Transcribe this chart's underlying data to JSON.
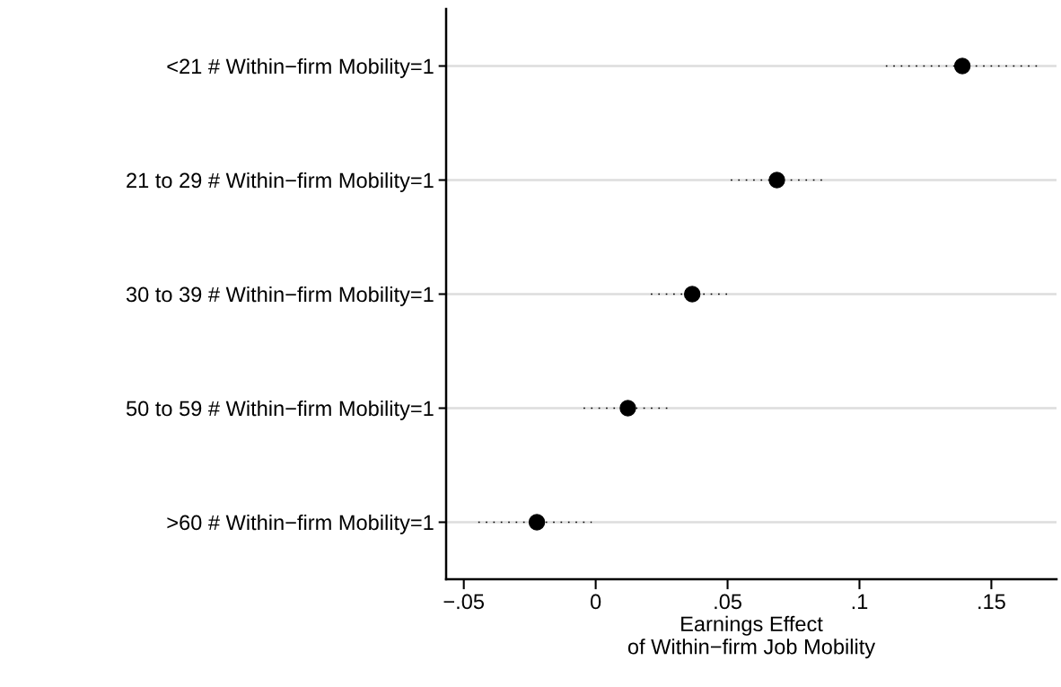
{
  "chart_data": {
    "type": "scatter",
    "orientation": "horizontal",
    "xlabel": "Earnings Effect\nof Within−firm Job Mobility",
    "categories": [
      "<21 # Within−firm Mobility=1",
      "21 to 29 # Within−firm Mobility=1",
      "30 to 39 # Within−firm Mobility=1",
      "50 to 59 # Within−firm Mobility=1",
      ">60 # Within−firm Mobility=1"
    ],
    "values": [
      0.139,
      0.0687,
      0.0366,
      0.0122,
      -0.0223
    ],
    "errors": [
      [
        0.11,
        0.168
      ],
      [
        0.0512,
        0.0864
      ],
      [
        0.0209,
        0.0515
      ],
      [
        -0.0046,
        0.0285
      ],
      [
        -0.0445,
        -0.0015
      ]
    ],
    "color": "#000000",
    "marker": "circle",
    "grid": "y",
    "xlim": [
      -0.0567,
      0.1747
    ],
    "xticks": [
      {
        "value": -0.05,
        "label": "−.05"
      },
      0,
      {
        "value": 0.05,
        "label": ".05"
      },
      {
        "value": 0.1,
        "label": ".1"
      },
      {
        "value": 0.15,
        "label": ".15"
      }
    ]
  }
}
